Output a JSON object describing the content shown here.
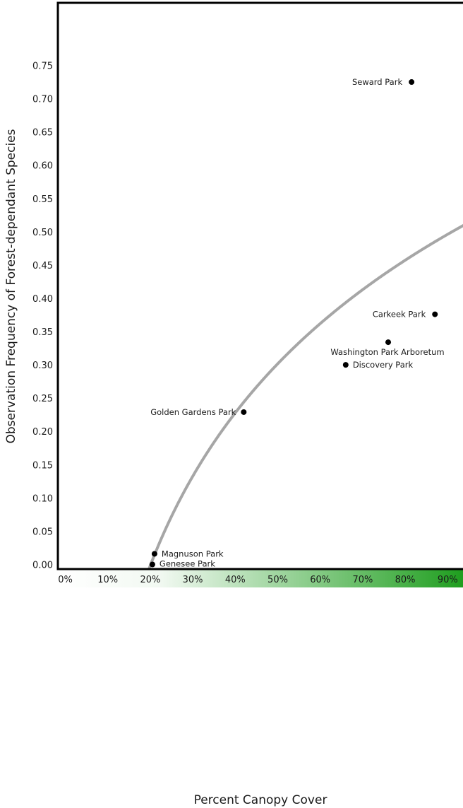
{
  "chart_data": {
    "type": "scatter",
    "title": "",
    "xlabel": "Percent Canopy Cover",
    "ylabel": "Observation Frequency of Forest-dependant Species",
    "xlim": [
      0,
      92
    ],
    "ylim": [
      0,
      0.75
    ],
    "x_ticks": [
      0,
      10,
      20,
      30,
      40,
      50,
      60,
      70,
      80,
      90
    ],
    "x_tick_labels": [
      "0%",
      "10%",
      "20%",
      "30%",
      "40%",
      "50%",
      "60%",
      "70%",
      "80%",
      "90%"
    ],
    "y_ticks": [
      0,
      0.05,
      0.1,
      0.15,
      0.2,
      0.25,
      0.3,
      0.35,
      0.4,
      0.45,
      0.5,
      0.55,
      0.6,
      0.65,
      0.7,
      0.75
    ],
    "y_tick_labels": [
      "0.00",
      "0.05",
      "0.10",
      "0.15",
      "0.20",
      "0.25",
      "0.30",
      "0.35",
      "0.40",
      "0.45",
      "0.50",
      "0.55",
      "0.60",
      "0.65",
      "0.70",
      "0.75"
    ],
    "points": [
      {
        "label": "Seward Park",
        "x": 81.5,
        "y": 0.725
      },
      {
        "label": "Carkeek Park",
        "x": 87.0,
        "y": 0.376
      },
      {
        "label": "Washington Park Arboretum",
        "x": 76.0,
        "y": 0.334
      },
      {
        "label": "Discovery Park",
        "x": 66.0,
        "y": 0.3
      },
      {
        "label": "Golden Gardens Park",
        "x": 42.0,
        "y": 0.229
      },
      {
        "label": "Magnuson Park",
        "x": 21.0,
        "y": 0.016
      },
      {
        "label": "Genesee Park",
        "x": 20.5,
        "y": 0.0
      }
    ],
    "trend": {
      "type": "logarithmic",
      "a": 0.331,
      "b": 20.1
    },
    "x_axis_gradient": {
      "from": "#ffffff",
      "to": "#1f9e1f"
    },
    "colors": {
      "points": "#000000",
      "trend": "#a6a6a6",
      "frame": "#000000"
    },
    "grid": false,
    "legend": "none"
  }
}
